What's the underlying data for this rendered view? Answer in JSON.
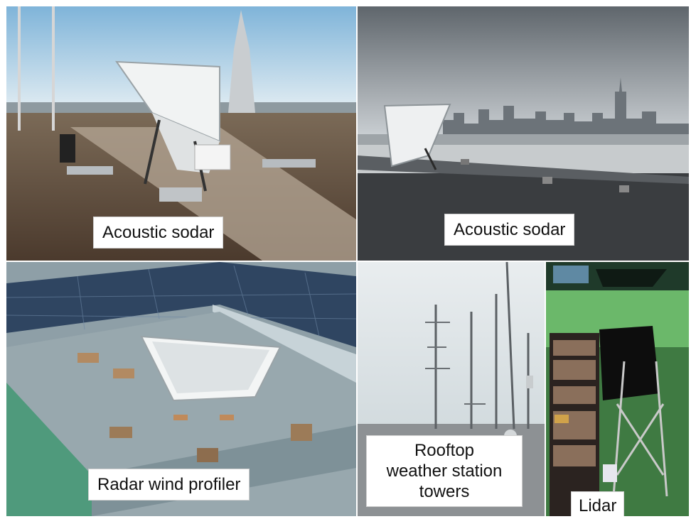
{
  "panels": {
    "top_left": {
      "caption": "Acoustic sodar"
    },
    "top_right": {
      "caption": "Acoustic sodar"
    },
    "bottom_left": {
      "caption": "Radar wind profiler"
    },
    "bottom_mid": {
      "caption_lines": [
        "Rooftop",
        "weather station",
        "towers"
      ]
    },
    "bottom_right": {
      "caption": "Lidar"
    }
  }
}
